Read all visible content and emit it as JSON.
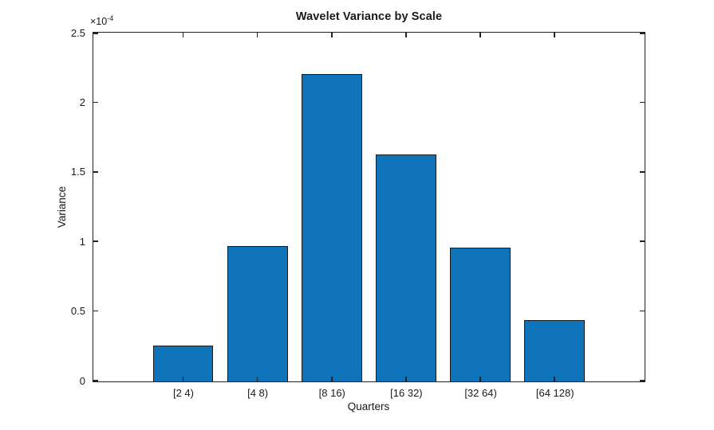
{
  "chart_data": {
    "type": "bar",
    "title": "Wavelet Variance by Scale",
    "xlabel": "Quarters",
    "ylabel": "Variance",
    "y_exponent": {
      "base": "×10",
      "power": "-4"
    },
    "categories": [
      "[2 4)",
      "[4 8)",
      "[8 16)",
      "[16 32)",
      "[32 64)",
      "[64 128)"
    ],
    "values": [
      0.26,
      0.97,
      2.21,
      1.63,
      0.96,
      0.44
    ],
    "value_unit_multiplier": "1e-4",
    "ylim": [
      0,
      2.5
    ],
    "yticks": [
      0,
      0.5,
      1,
      1.5,
      2,
      2.5
    ],
    "ytick_labels": [
      "0",
      "0.5",
      "1",
      "1.5",
      "2",
      "2.5"
    ],
    "grid": "off",
    "legend": "none",
    "colors": {
      "bar_fill": "#0f73b9",
      "bar_edge": "#1a1a1a",
      "axis": "#222222",
      "text": "#1a1a1a",
      "background": "#ffffff"
    }
  }
}
